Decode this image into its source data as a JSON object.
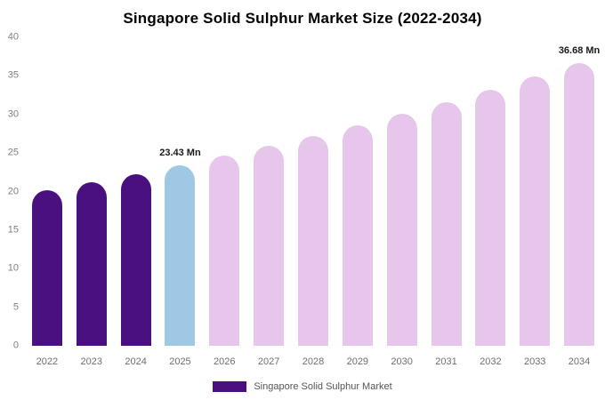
{
  "chart_data": {
    "type": "bar",
    "title": "Singapore Solid Sulphur Market Size (2022-2034)",
    "categories": [
      "2022",
      "2023",
      "2024",
      "2025",
      "2026",
      "2027",
      "2028",
      "2029",
      "2030",
      "2031",
      "2032",
      "2033",
      "2034"
    ],
    "values": [
      20.18,
      21.21,
      22.29,
      23.43,
      24.63,
      25.89,
      27.21,
      28.6,
      30.06,
      31.6,
      33.21,
      34.9,
      36.68
    ],
    "unit": "Mn",
    "xlabel": "",
    "ylabel": "",
    "ylim": [
      0,
      40
    ],
    "yticks": [
      0,
      5,
      10,
      15,
      20,
      25,
      30,
      35,
      40
    ],
    "grid": false,
    "data_labels": {
      "2025": "23.43 Mn",
      "2034": "36.68 Mn"
    },
    "bar_colors": [
      "#4a1080",
      "#4a1080",
      "#4a1080",
      "#9fc8e4",
      "#e6c6ea",
      "#e6c6ea",
      "#e6c6ea",
      "#e6c6ea",
      "#e6c6ea",
      "#e6c6ea",
      "#e6c6ea",
      "#e6c6ea",
      "#e6c6ea"
    ],
    "colors": {
      "historical": "#4a1080",
      "current_year": "#9fc8e4",
      "forecast": "#e6c6ea"
    },
    "legend": {
      "position": "bottom",
      "items": [
        {
          "label": "Singapore Solid Sulphur Market",
          "color": "#4a1080"
        }
      ]
    }
  }
}
